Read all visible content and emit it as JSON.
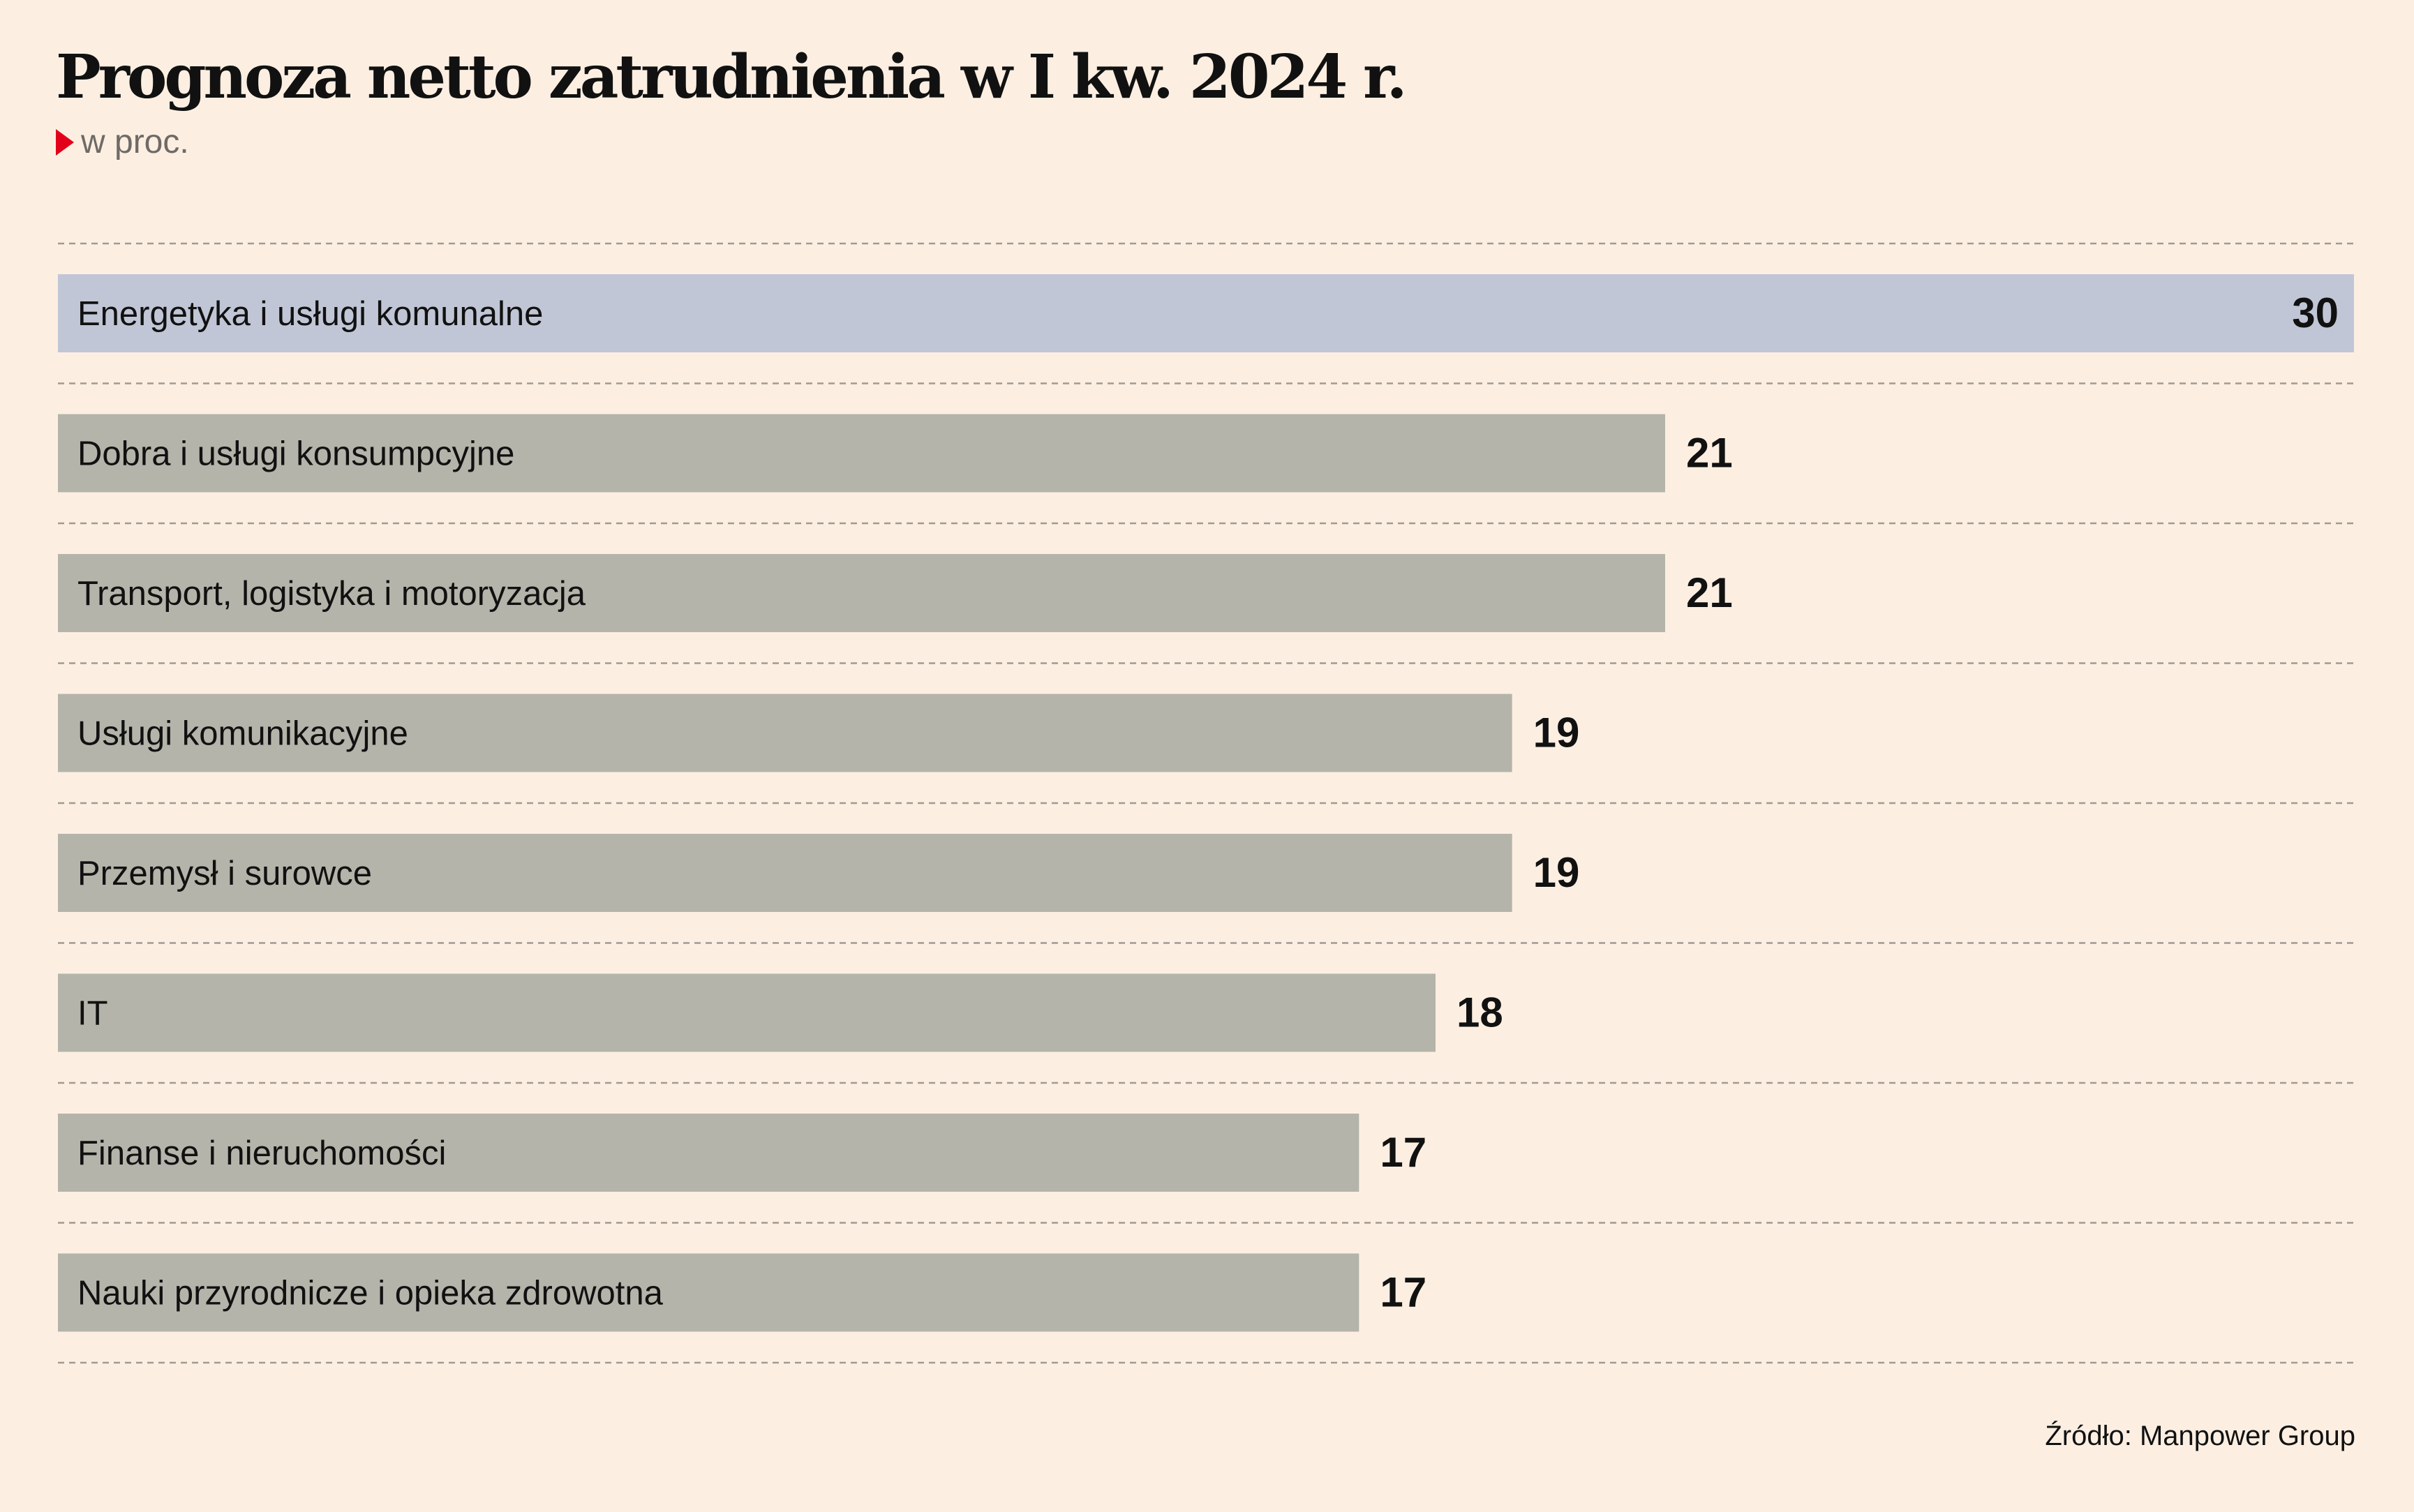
{
  "chart_data": {
    "type": "bar",
    "orientation": "horizontal",
    "title": "Prognoza netto zatrudnienia w I kw. 2024 r.",
    "subtitle": "w proc.",
    "categories": [
      "Energetyka i usługi komunalne",
      "Dobra i usługi konsumpcyjne",
      "Transport, logistyka i motoryzacja",
      "Usługi komunikacyjne",
      "Przemysł i surowce",
      "IT",
      "Finanse i nieruchomości",
      "Nauki przyrodnicze i opieka zdrowotna"
    ],
    "values": [
      30,
      21,
      21,
      19,
      19,
      18,
      17,
      17
    ],
    "xlim": [
      0,
      30
    ],
    "grid": true,
    "legend": "none",
    "highlight_index": 0,
    "colors": {
      "highlight_bar": "#c1c6d6",
      "bar": "#b5b4aa",
      "background": "#fcefe2",
      "gridline": "#a09a93",
      "marker": "#e3001b"
    },
    "source": "Źródło: Manpower Group"
  }
}
